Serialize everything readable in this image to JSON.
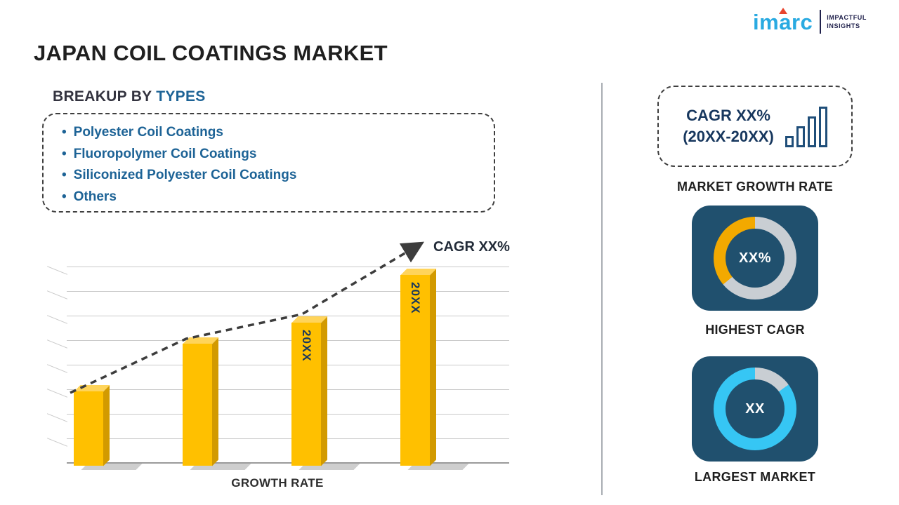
{
  "page": {
    "title": "JAPAN COIL COATINGS MARKET"
  },
  "logo": {
    "brand": "imarc",
    "tagline_line1": "IMPACTFUL",
    "tagline_line2": "INSIGHTS"
  },
  "breakup": {
    "heading_prefix": "BREAKUP BY ",
    "heading_accent": "TYPES",
    "items": [
      "Polyester Coil Coatings",
      "Fluoropolymer Coil Coatings",
      "Siliconized Polyester Coil Coatings",
      "Others"
    ]
  },
  "chart_data": {
    "type": "bar",
    "title": "",
    "categories": [
      "",
      "",
      "20XX",
      "20XX"
    ],
    "values": [
      28,
      46,
      54,
      72
    ],
    "ylim": [
      0,
      80
    ],
    "xlabel": "GROWTH RATE",
    "ylabel": "",
    "grid": "horizontal",
    "legend": "none",
    "annotation": "CAGR XX%",
    "trendline": "dashed ascending arrow across bar tops"
  },
  "right_panel": {
    "growth_card": {
      "line1": "CAGR XX%",
      "line2": "(20XX-20XX)",
      "label": "MARKET GROWTH RATE"
    },
    "highest_cagr": {
      "value": "XX%",
      "label": "HIGHEST CAGR",
      "fraction": 0.36,
      "accent_color": "#f2a900",
      "track_color": "#c9ced3"
    },
    "largest_market": {
      "value": "XX",
      "label": "LARGEST MARKET",
      "fraction": 0.85,
      "accent_color": "#36c6f4",
      "track_color": "#c9ced3"
    }
  },
  "colors": {
    "accent-blue": "#1d6396",
    "navy-text": "#17375e",
    "bar-yellow": "#ffc000",
    "bar-yellow-dark": "#d29a00",
    "bar-yellow-light": "#ffd45a",
    "tile-blue": "#20506e",
    "logo-cyan": "#29aae1",
    "logo-red": "#e8432d",
    "line-gray": "#c9c9c9"
  }
}
